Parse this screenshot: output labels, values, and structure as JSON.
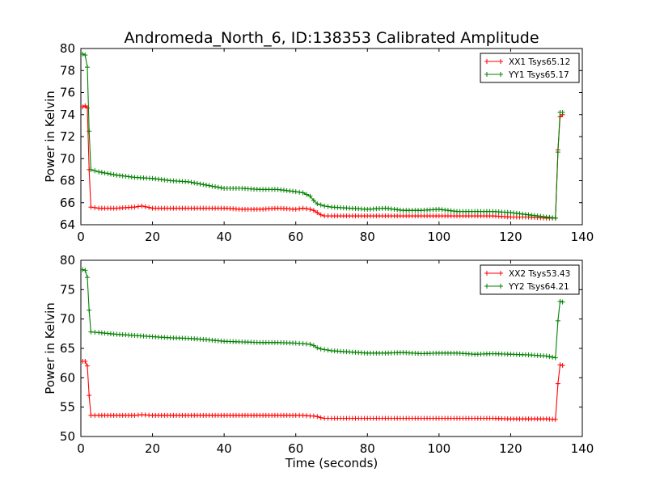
{
  "title": "Andromeda_North_6, ID:138353 Calibrated Amplitude",
  "chart_data": [
    {
      "type": "line",
      "ylabel": "Power in Kelvin",
      "xlabel": "",
      "xlim": [
        0,
        140
      ],
      "ylim": [
        64,
        80
      ],
      "xticks": [
        "0",
        "20",
        "40",
        "60",
        "80",
        "100",
        "120",
        "140"
      ],
      "yticks": [
        "64",
        "66",
        "68",
        "70",
        "72",
        "74",
        "76",
        "78",
        "80"
      ],
      "legend_position": "top-right",
      "series": [
        {
          "name": "XX1 Tsys65.12",
          "color": "#ff0000",
          "x": [
            0.5,
            1.2,
            1.8,
            2.3,
            2.8,
            5,
            10,
            15,
            17,
            20,
            25,
            30,
            35,
            40,
            45,
            50,
            55,
            60,
            62,
            64,
            65,
            66,
            67,
            68,
            70,
            75,
            80,
            85,
            90,
            95,
            100,
            105,
            110,
            115,
            120,
            125,
            130,
            132.5,
            133.2,
            133.8,
            134.5
          ],
          "y": [
            74.7,
            74.8,
            74.6,
            69.0,
            65.6,
            65.5,
            65.5,
            65.6,
            65.7,
            65.5,
            65.5,
            65.5,
            65.5,
            65.5,
            65.4,
            65.4,
            65.5,
            65.4,
            65.5,
            65.4,
            65.3,
            65.1,
            64.9,
            64.8,
            64.8,
            64.8,
            64.8,
            64.8,
            64.8,
            64.8,
            64.8,
            64.8,
            64.8,
            64.8,
            64.7,
            64.7,
            64.6,
            64.6,
            70.8,
            73.8,
            74.0
          ]
        },
        {
          "name": "YY1 Tsys65.17",
          "color": "#008000",
          "x": [
            0.5,
            1.2,
            1.8,
            2.3,
            2.8,
            5,
            10,
            15,
            20,
            25,
            30,
            35,
            40,
            45,
            50,
            55,
            60,
            62,
            64,
            65,
            66,
            67,
            68,
            70,
            75,
            80,
            85,
            90,
            95,
            100,
            105,
            110,
            115,
            120,
            125,
            130,
            132.5,
            133.2,
            133.8,
            134.5
          ],
          "y": [
            79.5,
            79.4,
            78.3,
            72.5,
            69.0,
            68.8,
            68.5,
            68.3,
            68.2,
            68.0,
            67.9,
            67.6,
            67.3,
            67.3,
            67.2,
            67.2,
            67.0,
            66.9,
            66.6,
            66.2,
            65.9,
            65.8,
            65.7,
            65.6,
            65.5,
            65.4,
            65.5,
            65.3,
            65.3,
            65.4,
            65.2,
            65.2,
            65.2,
            65.1,
            64.9,
            64.7,
            64.6,
            70.6,
            74.2,
            74.2
          ]
        }
      ]
    },
    {
      "type": "line",
      "ylabel": "Power in Kelvin",
      "xlabel": "Time (seconds)",
      "xlim": [
        0,
        140
      ],
      "ylim": [
        50,
        80
      ],
      "xticks": [
        "0",
        "20",
        "40",
        "60",
        "80",
        "100",
        "120",
        "140"
      ],
      "yticks": [
        "50",
        "55",
        "60",
        "65",
        "70",
        "75",
        "80"
      ],
      "legend_position": "top-right",
      "series": [
        {
          "name": "XX2 Tsys53.43",
          "color": "#ff0000",
          "x": [
            0.5,
            1.2,
            1.8,
            2.3,
            2.8,
            5,
            10,
            15,
            17,
            20,
            25,
            30,
            35,
            40,
            45,
            50,
            55,
            60,
            62,
            64,
            65,
            66,
            67,
            68,
            70,
            75,
            80,
            85,
            90,
            95,
            100,
            105,
            110,
            115,
            120,
            125,
            130,
            132.5,
            133.2,
            133.8,
            134.5
          ],
          "y": [
            62.8,
            62.8,
            62.0,
            57.0,
            53.6,
            53.6,
            53.6,
            53.6,
            53.7,
            53.6,
            53.6,
            53.6,
            53.6,
            53.6,
            53.6,
            53.6,
            53.6,
            53.6,
            53.6,
            53.5,
            53.5,
            53.4,
            53.2,
            53.1,
            53.1,
            53.1,
            53.1,
            53.1,
            53.1,
            53.1,
            53.1,
            53.1,
            53.1,
            53.1,
            53.0,
            53.0,
            53.0,
            52.9,
            59.0,
            62.2,
            62.1
          ]
        },
        {
          "name": "YY2 Tsys64.21",
          "color": "#008000",
          "x": [
            0.5,
            1.2,
            1.8,
            2.3,
            2.8,
            5,
            10,
            15,
            20,
            25,
            30,
            35,
            40,
            45,
            50,
            55,
            60,
            62,
            64,
            65,
            66,
            67,
            68,
            70,
            75,
            80,
            85,
            90,
            95,
            100,
            105,
            110,
            115,
            120,
            125,
            130,
            132.5,
            133.2,
            133.8,
            134.5
          ],
          "y": [
            78.4,
            78.3,
            77.1,
            71.5,
            67.8,
            67.7,
            67.4,
            67.2,
            67.0,
            66.8,
            66.7,
            66.5,
            66.2,
            66.1,
            66.0,
            66.0,
            65.9,
            65.8,
            65.7,
            65.5,
            65.1,
            64.9,
            64.8,
            64.6,
            64.4,
            64.2,
            64.2,
            64.3,
            64.1,
            64.2,
            64.2,
            64.0,
            64.1,
            64.0,
            63.9,
            63.7,
            63.4,
            69.7,
            73.0,
            72.9
          ]
        }
      ]
    }
  ]
}
